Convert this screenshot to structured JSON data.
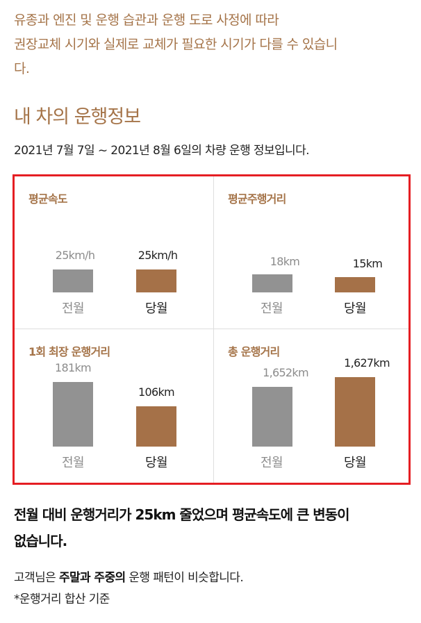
{
  "intro": {
    "line1": "유종과 엔진 및 운행 습관과 운행 도로 사정에 따라",
    "line2": "권장교체 시기와 실제로 교체가 필요한 시기가 다를 수 있습니",
    "line3": "다."
  },
  "section_title": "내 차의 운행정보",
  "period": "2021년 7월 7일 ~ 2021년 8월 6일의 차량 운행 정보입니다.",
  "stats": {
    "border_color": "#e51e23",
    "prev_color": "#929292",
    "curr_color": "#a57148",
    "prev_label": "전월",
    "curr_label": "당월",
    "panels": [
      {
        "title": "평균속도",
        "prev": {
          "text": "25km/h",
          "value": 25
        },
        "curr": {
          "text": "25km/h",
          "value": 25
        }
      },
      {
        "title": "평균주행거리",
        "prev": {
          "text": "18km",
          "value": 18
        },
        "curr": {
          "text": "15km",
          "value": 15
        }
      },
      {
        "title": "1회 최장 운행거리",
        "prev": {
          "text": "181km",
          "value": 181
        },
        "curr": {
          "text": "106km",
          "value": 106
        }
      },
      {
        "title": "총 운행거리",
        "prev": {
          "text": "1,652km",
          "value": 1652
        },
        "curr": {
          "text": "1,627km",
          "value": 1627
        }
      }
    ]
  },
  "summary": {
    "line1": "전월 대비 운행거리가 25km 줄었으며  평균속도에 큰 변동이",
    "line2": "없습니다."
  },
  "pattern": {
    "prefix": "고객님은 ",
    "bold1": "주말과 주중의",
    "suffix": " 운행 패턴이 비슷합니다."
  },
  "footnote": "*운행거리 합산 기준"
}
